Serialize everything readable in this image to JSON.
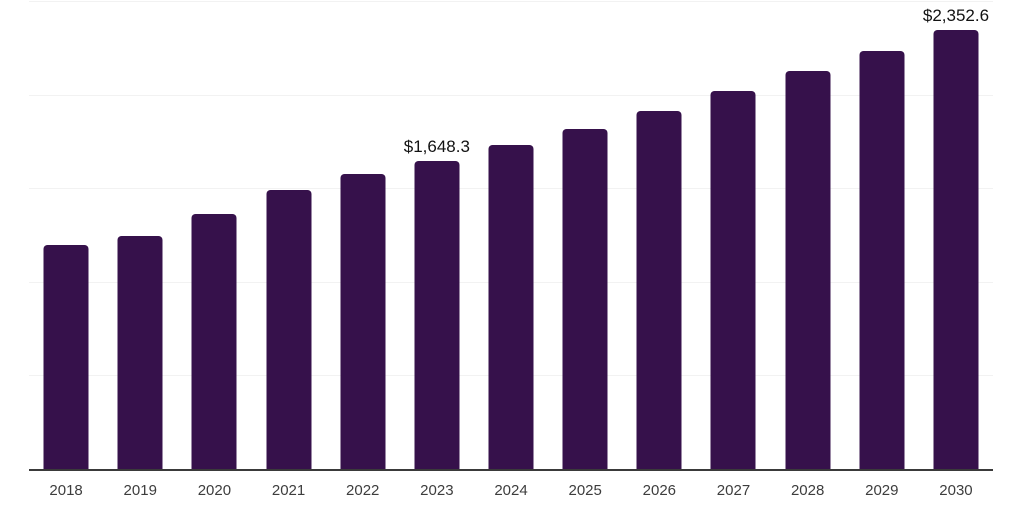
{
  "chart_data": {
    "type": "bar",
    "title": "",
    "xlabel": "",
    "ylabel": "",
    "categories": [
      "2018",
      "2019",
      "2020",
      "2021",
      "2022",
      "2023",
      "2024",
      "2025",
      "2026",
      "2027",
      "2028",
      "2029",
      "2030"
    ],
    "values": [
      1200,
      1250,
      1370,
      1497,
      1580,
      1648.3,
      1734,
      1823,
      1917,
      2022,
      2131,
      2237,
      2352.6
    ],
    "value_labels": {
      "2023": "$1,648.3",
      "2030": "$2,352.6"
    },
    "ylim": [
      0,
      2500
    ],
    "grid_step": 500,
    "grid": "horizontal",
    "y_axis_labels": "none",
    "legend_position": "none",
    "colors": {
      "bar": "#36114B",
      "gridline": "#f2f2f2",
      "axis_line": "#3a3a3a",
      "value_label": "#121212",
      "tick_label": "#3d3d3d",
      "background": "#ffffff"
    }
  }
}
